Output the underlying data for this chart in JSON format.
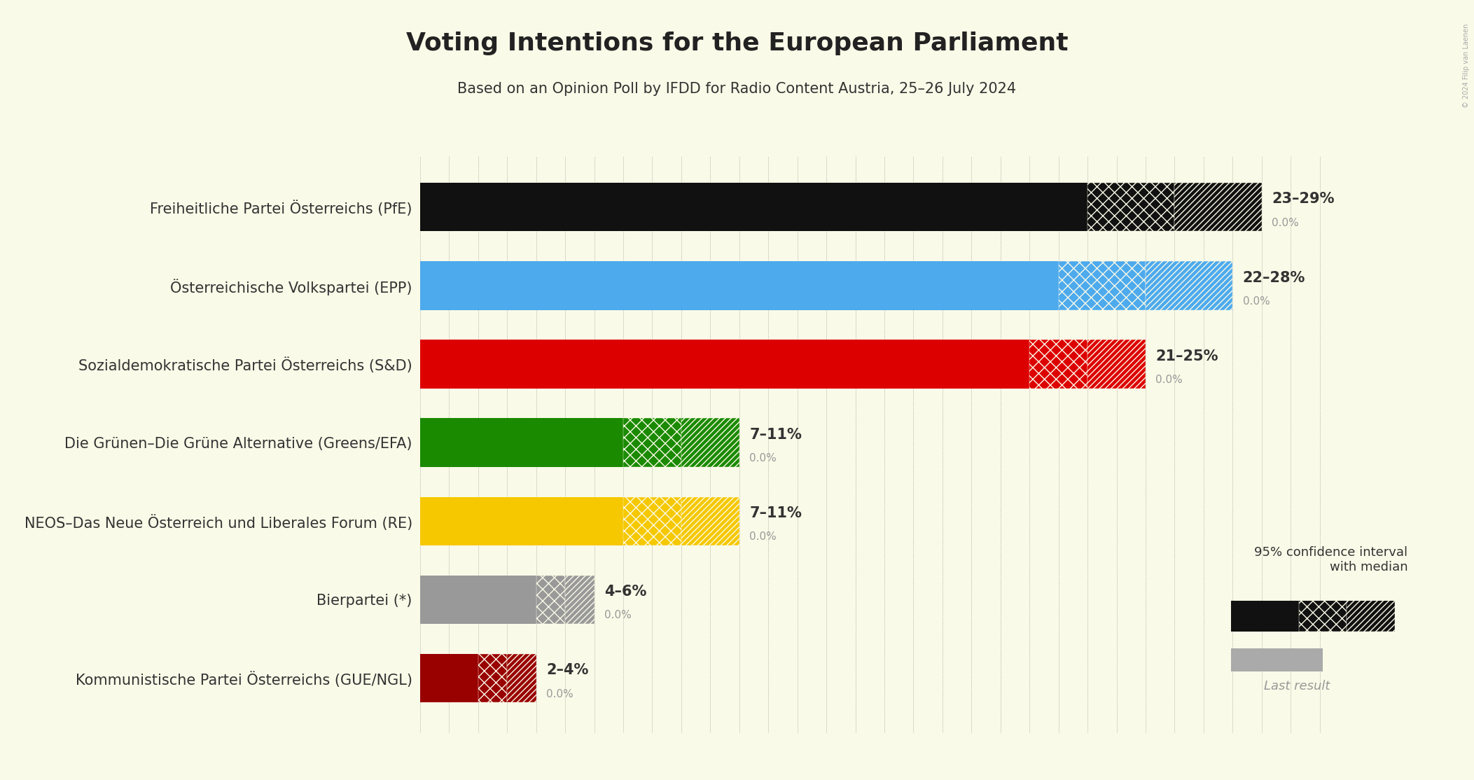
{
  "title": "Voting Intentions for the European Parliament",
  "subtitle": "Based on an Opinion Poll by IFDD for Radio Content Austria, 25–26 July 2024",
  "background_color": "#FAFAE8",
  "parties": [
    "Freiheitliche Partei Österreichs (PfE)",
    "Österreichische Volkspartei (EPP)",
    "Sozialdemokratische Partei Österreichs (S&D)",
    "Die Grünen–Die Grüne Alternative (Greens/EFA)",
    "NEOS–Das Neue Österreich und Liberales Forum (RE)",
    "Bierpartei (*)",
    "Kommunistische Partei Österreichs (GUE/NGL)"
  ],
  "colors": [
    "#111111",
    "#4daaed",
    "#dd0000",
    "#1a8a00",
    "#f5c800",
    "#999999",
    "#990000"
  ],
  "median_values": [
    26,
    25,
    23,
    9,
    9,
    5,
    3
  ],
  "ci_low": [
    23,
    22,
    21,
    7,
    7,
    4,
    2
  ],
  "ci_high": [
    29,
    28,
    25,
    11,
    11,
    6,
    4
  ],
  "range_labels": [
    "23–29%",
    "22–28%",
    "21–25%",
    "7–11%",
    "7–11%",
    "4–6%",
    "2–4%"
  ],
  "last_labels": [
    "0.0%",
    "0.0%",
    "0.0%",
    "0.0%",
    "0.0%",
    "0.0%",
    "0.0%"
  ],
  "xlim": [
    0,
    32
  ],
  "bar_height": 0.62,
  "title_fontsize": 26,
  "subtitle_fontsize": 15,
  "label_fontsize": 15,
  "annotation_fontsize": 15
}
